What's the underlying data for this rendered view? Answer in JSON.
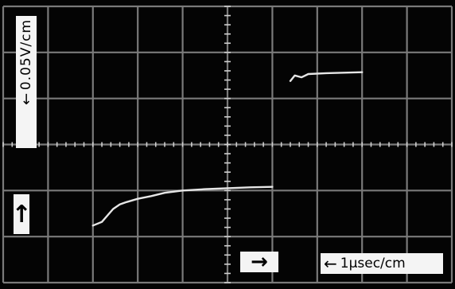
{
  "scope": {
    "vertical_scale_label": "0.05V/cm",
    "vertical_scale_arrow": "↓",
    "up_arrow": "↑",
    "right_arrow": "→",
    "time_scale_label": "1μsec/cm",
    "time_scale_arrow": "←"
  },
  "chart_data": {
    "type": "line",
    "title": "",
    "xlabel": "",
    "ylabel": "",
    "x_unit_per_div": "1μsec/cm",
    "y_unit_per_div": "0.05V/cm",
    "xlim": [
      0,
      10
    ],
    "ylim": [
      -3,
      3
    ],
    "grid": true,
    "trace_color": "#e6e6e6",
    "series": [
      {
        "values_xy": [
          [
            2.0,
            -1.76
          ],
          [
            2.2,
            -1.68
          ],
          [
            2.45,
            -1.4
          ],
          [
            2.6,
            -1.3
          ],
          [
            2.75,
            -1.25
          ],
          [
            3.0,
            -1.18
          ],
          [
            3.3,
            -1.12
          ],
          [
            3.6,
            -1.05
          ],
          [
            4.0,
            -1.0
          ],
          [
            4.5,
            -0.97
          ],
          [
            5.0,
            -0.95
          ],
          [
            5.5,
            -0.93
          ],
          [
            6.0,
            -0.92
          ]
        ]
      },
      {
        "values_xy": [
          [
            6.4,
            1.38
          ],
          [
            6.5,
            1.5
          ],
          [
            6.65,
            1.46
          ],
          [
            6.8,
            1.53
          ],
          [
            7.2,
            1.55
          ],
          [
            7.6,
            1.56
          ],
          [
            8.0,
            1.57
          ]
        ]
      }
    ]
  }
}
